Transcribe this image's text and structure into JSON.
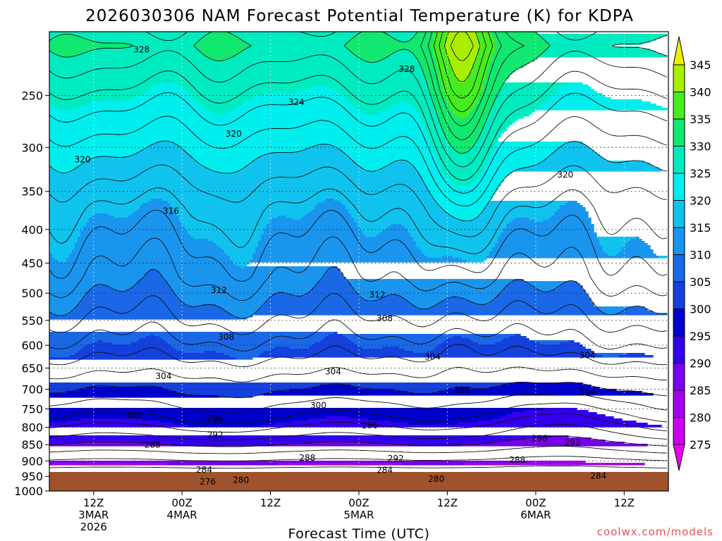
{
  "chart_data": {
    "type": "heatmap",
    "title": "2026030306 NAM Forecast Potential Temperature (K) for KDPA",
    "xlabel": "Forecast Time (UTC)",
    "ylabel": "",
    "x_ticks": [
      {
        "lines": [
          "12Z",
          "3MAR",
          "2026"
        ]
      },
      {
        "lines": [
          "00Z",
          "4MAR"
        ]
      },
      {
        "lines": [
          "12Z"
        ]
      },
      {
        "lines": [
          "00Z",
          "5MAR"
        ]
      },
      {
        "lines": [
          "12Z"
        ]
      },
      {
        "lines": [
          "00Z",
          "6MAR"
        ]
      },
      {
        "lines": [
          "12Z"
        ]
      }
    ],
    "x_tick_hours": [
      6,
      18,
      30,
      42,
      54,
      66,
      78
    ],
    "x_range_hours": [
      0,
      84
    ],
    "y_ticks": [
      250,
      300,
      350,
      400,
      450,
      500,
      550,
      600,
      650,
      700,
      750,
      800,
      850,
      900,
      950,
      1000
    ],
    "ylim": [
      200,
      1000
    ],
    "y_scale": "log",
    "grid": true,
    "colorbar": {
      "levels": [
        275,
        280,
        285,
        290,
        295,
        300,
        305,
        310,
        315,
        320,
        325,
        330,
        335,
        340,
        345
      ],
      "colors": [
        "#ee00ee",
        "#cc00ee",
        "#a400ee",
        "#7800ee",
        "#3200ee",
        "#0000cc",
        "#1440dd",
        "#1a68e6",
        "#1a95ee",
        "#10c3ee",
        "#00eeee",
        "#00ecc0",
        "#10e870",
        "#46ec20",
        "#a8ee00",
        "#eeee00"
      ],
      "placement": "right"
    },
    "ground_color": "#a0522d",
    "contour_labels": [
      {
        "t": 328,
        "h": 12.5,
        "p": 213
      },
      {
        "t": 328,
        "h": 48.5,
        "p": 228
      },
      {
        "t": 324,
        "h": 33.5,
        "p": 256
      },
      {
        "t": 320,
        "h": 25.0,
        "p": 286
      },
      {
        "t": 320,
        "h": 4.5,
        "p": 313
      },
      {
        "t": 320,
        "h": 70.0,
        "p": 330
      },
      {
        "t": 316,
        "h": 16.5,
        "p": 375
      },
      {
        "t": 312,
        "h": 23.0,
        "p": 495
      },
      {
        "t": 312,
        "h": 44.5,
        "p": 503
      },
      {
        "t": 308,
        "h": 45.5,
        "p": 546
      },
      {
        "t": 308,
        "h": 24.0,
        "p": 583
      },
      {
        "t": 304,
        "h": 52.0,
        "p": 625
      },
      {
        "t": 304,
        "h": 73.0,
        "p": 622
      },
      {
        "t": 304,
        "h": 15.5,
        "p": 669
      },
      {
        "t": 304,
        "h": 38.5,
        "p": 658
      },
      {
        "t": 304,
        "h": 73.0,
        "p": 707
      },
      {
        "t": 300,
        "h": 56.0,
        "p": 703
      },
      {
        "t": 300,
        "h": 36.5,
        "p": 741
      },
      {
        "t": 300,
        "h": 11.5,
        "p": 769
      },
      {
        "t": 296,
        "h": 22.5,
        "p": 776
      },
      {
        "t": 296,
        "h": 43.5,
        "p": 795
      },
      {
        "t": 296,
        "h": 66.5,
        "p": 832
      },
      {
        "t": 292,
        "h": 22.5,
        "p": 822
      },
      {
        "t": 292,
        "h": 71.0,
        "p": 844
      },
      {
        "t": 292,
        "h": 47.0,
        "p": 893
      },
      {
        "t": 288,
        "h": 14.0,
        "p": 851
      },
      {
        "t": 288,
        "h": 35.0,
        "p": 890
      },
      {
        "t": 288,
        "h": 63.5,
        "p": 897
      },
      {
        "t": 284,
        "h": 21.0,
        "p": 929
      },
      {
        "t": 284,
        "h": 45.5,
        "p": 930
      },
      {
        "t": 284,
        "h": 74.5,
        "p": 948
      },
      {
        "t": 280,
        "h": 26.0,
        "p": 963
      },
      {
        "t": 280,
        "h": 52.5,
        "p": 959
      },
      {
        "t": 276,
        "h": 21.5,
        "p": 968
      }
    ],
    "contour_anchor_pressures": {
      "330": 210,
      "328": 225,
      "324": 262,
      "320": 310,
      "316": 370,
      "312": 472,
      "308": 548,
      "304": 630,
      "300": 705,
      "296": 775,
      "292": 828,
      "288": 872,
      "284": 922,
      "280": 958
    },
    "series": []
  },
  "footer": {
    "url": "coolwx.com/models"
  }
}
